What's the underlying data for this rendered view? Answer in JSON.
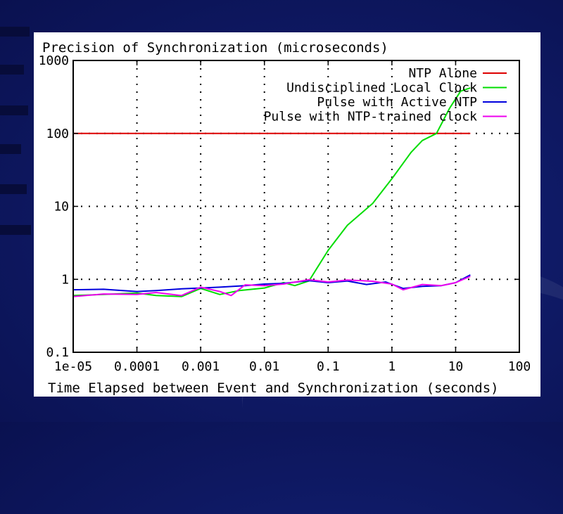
{
  "chart_data": {
    "type": "line",
    "title": "Precision of Synchronization (microseconds)",
    "xlabel": "Time Elapsed between Event and Synchronization (seconds)",
    "ylabel": "",
    "x_scale": "log",
    "y_scale": "log",
    "xlim": [
      1e-05,
      100
    ],
    "ylim": [
      0.1,
      1000
    ],
    "x_ticks": [
      "1e-05",
      "0.0001",
      "0.001",
      "0.01",
      "0.1",
      "1",
      "10",
      "100"
    ],
    "y_ticks": [
      "0.1",
      "1",
      "10",
      "100",
      "1000"
    ],
    "grid": true,
    "legend_position": "top-right",
    "series": [
      {
        "name": "NTP Alone",
        "color": "#dd0000",
        "x": [
          1e-05,
          17
        ],
        "y": [
          100,
          100
        ]
      },
      {
        "name": "Undisciplined Local Clock",
        "color": "#00dd00",
        "x": [
          1e-05,
          3e-05,
          0.0001,
          0.0002,
          0.0005,
          0.001,
          0.002,
          0.004,
          0.01,
          0.02,
          0.03,
          0.05,
          0.1,
          0.2,
          0.5,
          1,
          2,
          3,
          5,
          8,
          12,
          17
        ],
        "y": [
          0.6,
          0.62,
          0.65,
          0.6,
          0.58,
          0.75,
          0.62,
          0.7,
          0.76,
          0.9,
          0.82,
          0.95,
          2.5,
          5.5,
          11,
          24,
          55,
          80,
          100,
          220,
          380,
          420
        ]
      },
      {
        "name": "Pulse with Active NTP",
        "color": "#0000dd",
        "x": [
          1e-05,
          3e-05,
          0.0001,
          0.0002,
          0.0005,
          0.001,
          0.002,
          0.005,
          0.01,
          0.02,
          0.05,
          0.1,
          0.2,
          0.4,
          0.8,
          1.5,
          3,
          6,
          10,
          17
        ],
        "y": [
          0.72,
          0.73,
          0.68,
          0.7,
          0.74,
          0.76,
          0.78,
          0.82,
          0.86,
          0.88,
          0.96,
          0.9,
          0.95,
          0.85,
          0.92,
          0.75,
          0.8,
          0.82,
          0.9,
          1.15
        ]
      },
      {
        "name": "Pulse with NTP-trained clock",
        "color": "#ee00ee",
        "x": [
          1e-05,
          3e-05,
          0.0001,
          0.0002,
          0.0005,
          0.001,
          0.002,
          0.003,
          0.005,
          0.01,
          0.02,
          0.05,
          0.1,
          0.2,
          0.5,
          1,
          1.5,
          3,
          6,
          10,
          17
        ],
        "y": [
          0.58,
          0.63,
          0.62,
          0.66,
          0.6,
          0.78,
          0.68,
          0.6,
          0.84,
          0.82,
          0.86,
          0.99,
          0.92,
          0.98,
          0.94,
          0.86,
          0.72,
          0.85,
          0.82,
          0.9,
          1.1
        ]
      }
    ]
  }
}
